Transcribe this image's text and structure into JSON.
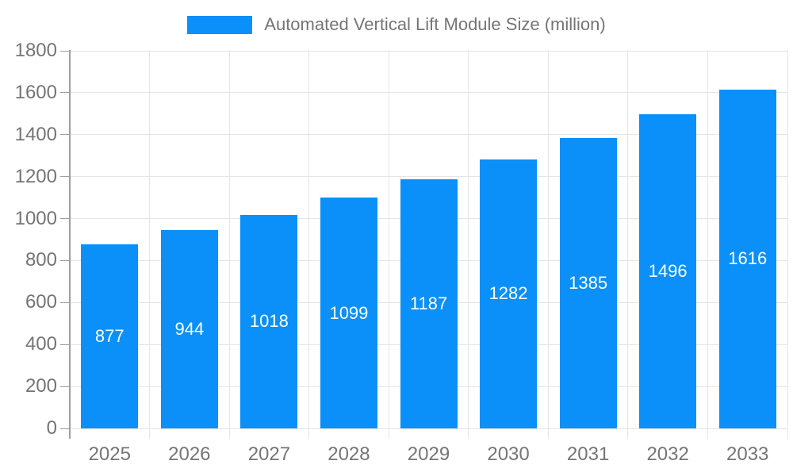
{
  "legend": {
    "label": "Automated Vertical Lift Module Size (million)"
  },
  "chart_data": {
    "type": "bar",
    "title": "Automated Vertical Lift Module Size (million)",
    "categories": [
      "2025",
      "2026",
      "2027",
      "2028",
      "2029",
      "2030",
      "2031",
      "2032",
      "2033"
    ],
    "values": [
      877,
      944,
      1018,
      1099,
      1187,
      1282,
      1385,
      1496,
      1616
    ],
    "xlabel": "",
    "ylabel": "",
    "ylim": [
      0,
      1800
    ],
    "yticks": [
      0,
      200,
      400,
      600,
      800,
      1000,
      1200,
      1400,
      1600,
      1800
    ],
    "grid": true,
    "legend_position": "top-center",
    "value_labels": "inside-center",
    "colors": {
      "bar": "#0a90f8",
      "grid": "#e5e5e5",
      "axis": "#9e9e9e",
      "tick_text": "#757575",
      "legend_text": "#757575",
      "value_text": "#ffffff",
      "background": "#ffffff"
    }
  }
}
